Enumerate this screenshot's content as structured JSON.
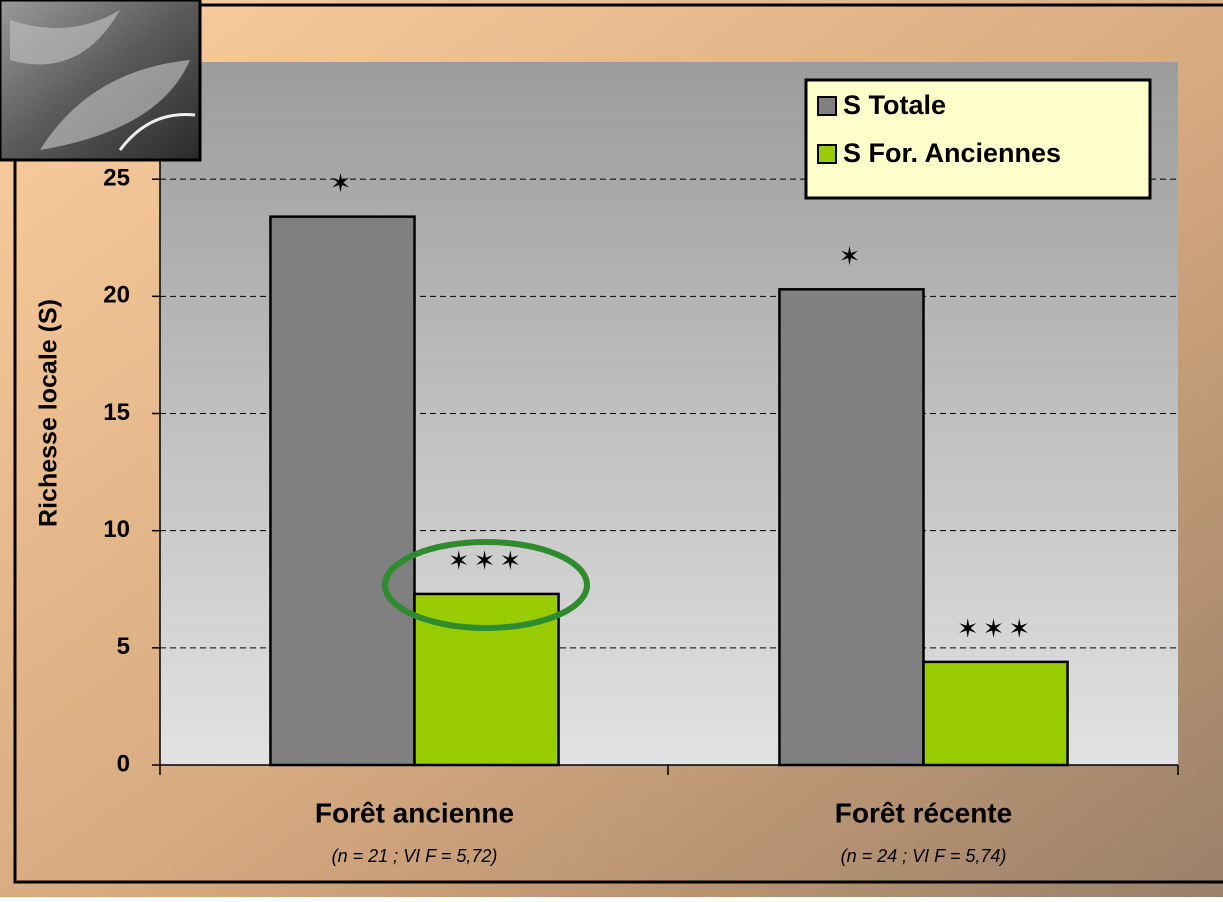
{
  "chart_data": {
    "type": "bar",
    "ylabel": "Richesse locale (S)",
    "categories": [
      "Forêt ancienne",
      "Forêt récente"
    ],
    "category_notes": [
      "(n = 21 ; VI F = 5,72)",
      "(n = 24 ; VI F = 5,74)"
    ],
    "series": [
      {
        "name": "S Totale",
        "color": "#808080",
        "values": [
          23.4,
          20.3
        ],
        "markers": [
          "✶",
          "✶"
        ]
      },
      {
        "name": "S For. Anciennes",
        "color": "#99cc00",
        "values": [
          7.3,
          4.4
        ],
        "markers": [
          "✶✶✶",
          "✶✶✶"
        ]
      }
    ],
    "ylim": [
      0,
      30
    ],
    "yticks": [
      0,
      5,
      10,
      15,
      20,
      25
    ],
    "grid": true,
    "legend": "upper right"
  }
}
